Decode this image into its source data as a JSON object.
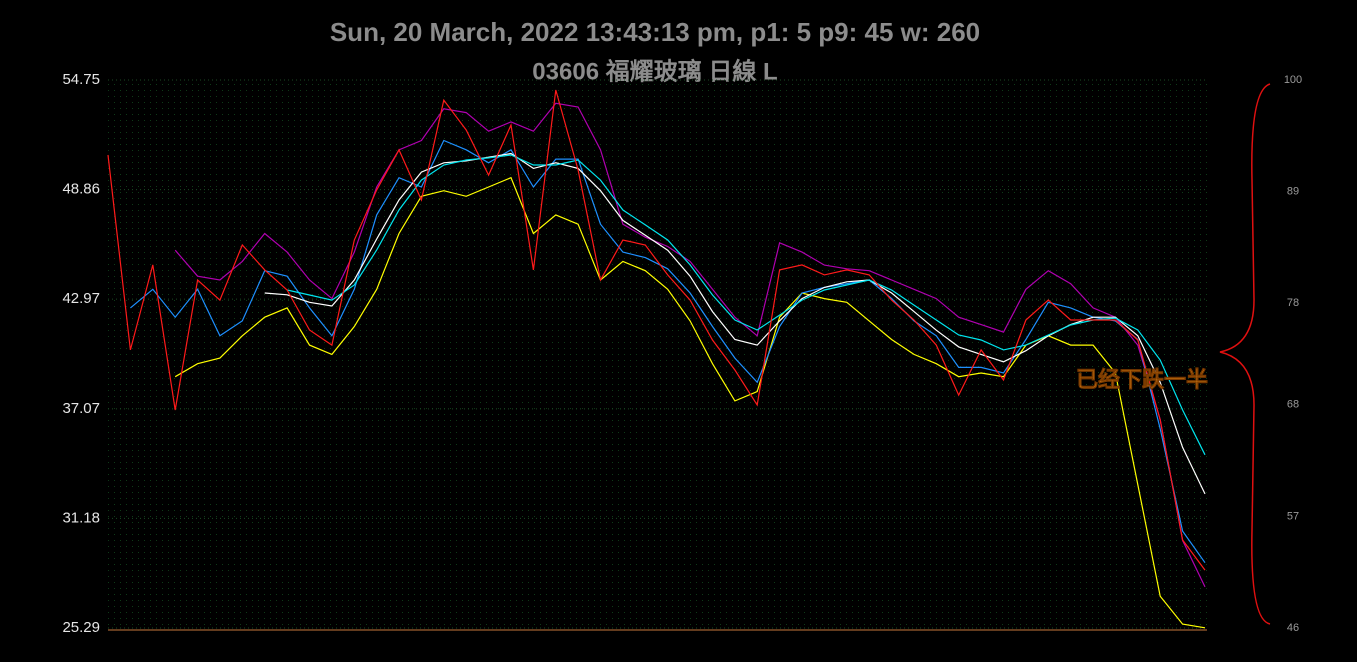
{
  "chart_data": {
    "type": "line",
    "title": "Sun, 20 March, 2022 13:43:13 pm, p1: 5 p9: 45 w: 260",
    "subtitle": "03606 福耀玻璃 日線 L",
    "annotation": "已经下跌一半",
    "ylim": [
      25.29,
      54.75
    ],
    "yticks": [
      54.75,
      48.86,
      42.97,
      37.07,
      31.18,
      25.29
    ],
    "y2lim": [
      46,
      100
    ],
    "y2ticks": [
      100,
      89,
      78,
      68,
      57,
      46
    ],
    "grid": true,
    "series": [
      {
        "color": "#ffff00",
        "values": [
          null,
          null,
          null,
          38.8,
          39.5,
          39.8,
          41.0,
          42.0,
          42.5,
          40.5,
          40.0,
          41.5,
          43.5,
          46.5,
          48.5,
          48.8,
          48.5,
          49.0,
          49.5,
          46.5,
          47.5,
          47.0,
          44.0,
          45.0,
          44.5,
          43.5,
          41.8,
          39.5,
          37.5,
          38.0,
          42.0,
          43.3,
          43.0,
          42.8,
          41.8,
          40.8,
          40.0,
          39.5,
          38.8,
          39.0,
          38.8,
          40.5,
          41.0,
          40.5,
          40.5,
          39.0,
          33.0,
          27.0,
          25.5,
          25.3
        ]
      },
      {
        "color": "#b000b0",
        "values": [
          null,
          null,
          null,
          45.6,
          44.2,
          44.0,
          45.0,
          46.5,
          45.5,
          44.0,
          43.0,
          45.5,
          49.0,
          51.0,
          51.5,
          53.2,
          53.0,
          52.0,
          52.5,
          52.0,
          53.5,
          53.3,
          51.0,
          47.0,
          46.3,
          45.8,
          45.0,
          43.5,
          42.0,
          41.0,
          46.0,
          45.5,
          44.8,
          44.6,
          44.5,
          44.0,
          43.5,
          43.0,
          42.0,
          41.6,
          41.2,
          43.5,
          44.5,
          43.8,
          42.5,
          42.0,
          40.5,
          36.5,
          30.0,
          27.5
        ]
      },
      {
        "color": "#1e90ff",
        "values": [
          null,
          42.5,
          43.5,
          42.0,
          43.5,
          41.0,
          41.8,
          44.5,
          44.2,
          42.5,
          41.0,
          43.5,
          47.5,
          49.5,
          49.0,
          51.5,
          51.0,
          50.3,
          51.0,
          49.0,
          50.5,
          50.5,
          47.0,
          45.5,
          45.2,
          44.6,
          43.3,
          41.5,
          39.8,
          38.5,
          41.5,
          43.3,
          43.6,
          43.8,
          44.0,
          43.0,
          41.8,
          41.0,
          39.3,
          39.3,
          39.0,
          40.8,
          42.8,
          42.5,
          42.0,
          41.8,
          40.8,
          36.0,
          30.5,
          28.8
        ]
      },
      {
        "color": "#ffffff",
        "values": [
          null,
          null,
          null,
          null,
          null,
          null,
          null,
          43.3,
          43.2,
          42.8,
          42.6,
          44.0,
          46.2,
          48.3,
          49.8,
          50.3,
          50.4,
          50.6,
          50.8,
          50.0,
          50.3,
          50.0,
          48.8,
          47.2,
          46.4,
          45.6,
          44.2,
          42.3,
          40.8,
          40.5,
          41.8,
          43.0,
          43.6,
          43.9,
          44.0,
          43.3,
          42.3,
          41.3,
          40.4,
          40.0,
          39.6,
          40.2,
          41.0,
          41.6,
          42.0,
          42.0,
          41.0,
          38.5,
          35.0,
          32.5
        ]
      },
      {
        "color": "#00e5ee",
        "values": [
          null,
          null,
          null,
          null,
          null,
          null,
          null,
          null,
          43.46,
          43.19,
          42.92,
          43.73,
          45.61,
          47.76,
          49.37,
          50.18,
          50.45,
          50.56,
          50.72,
          50.18,
          50.18,
          50.45,
          49.37,
          47.76,
          46.96,
          46.15,
          44.81,
          43.19,
          41.85,
          41.31,
          42.11,
          42.92,
          43.46,
          43.73,
          44.0,
          43.46,
          42.65,
          41.85,
          41.04,
          40.77,
          40.24,
          40.5,
          41.04,
          41.58,
          41.85,
          41.95,
          41.31,
          39.7,
          37.01,
          34.6
        ]
      },
      {
        "color": "#ff1a1a",
        "values": [
          50.72,
          40.24,
          44.81,
          37.01,
          44.0,
          42.92,
          45.88,
          44.54,
          43.46,
          41.31,
          40.5,
          46.15,
          48.84,
          50.99,
          48.3,
          53.67,
          52.06,
          49.64,
          52.33,
          44.54,
          54.21,
          49.91,
          44.0,
          46.15,
          45.88,
          44.27,
          42.92,
          40.77,
          39.16,
          37.28,
          44.54,
          44.81,
          44.27,
          44.54,
          44.27,
          42.92,
          41.85,
          40.5,
          37.81,
          40.24,
          38.62,
          41.85,
          42.92,
          41.85,
          41.85,
          41.85,
          40.77,
          36.47,
          30.02,
          28.4
        ]
      }
    ]
  }
}
